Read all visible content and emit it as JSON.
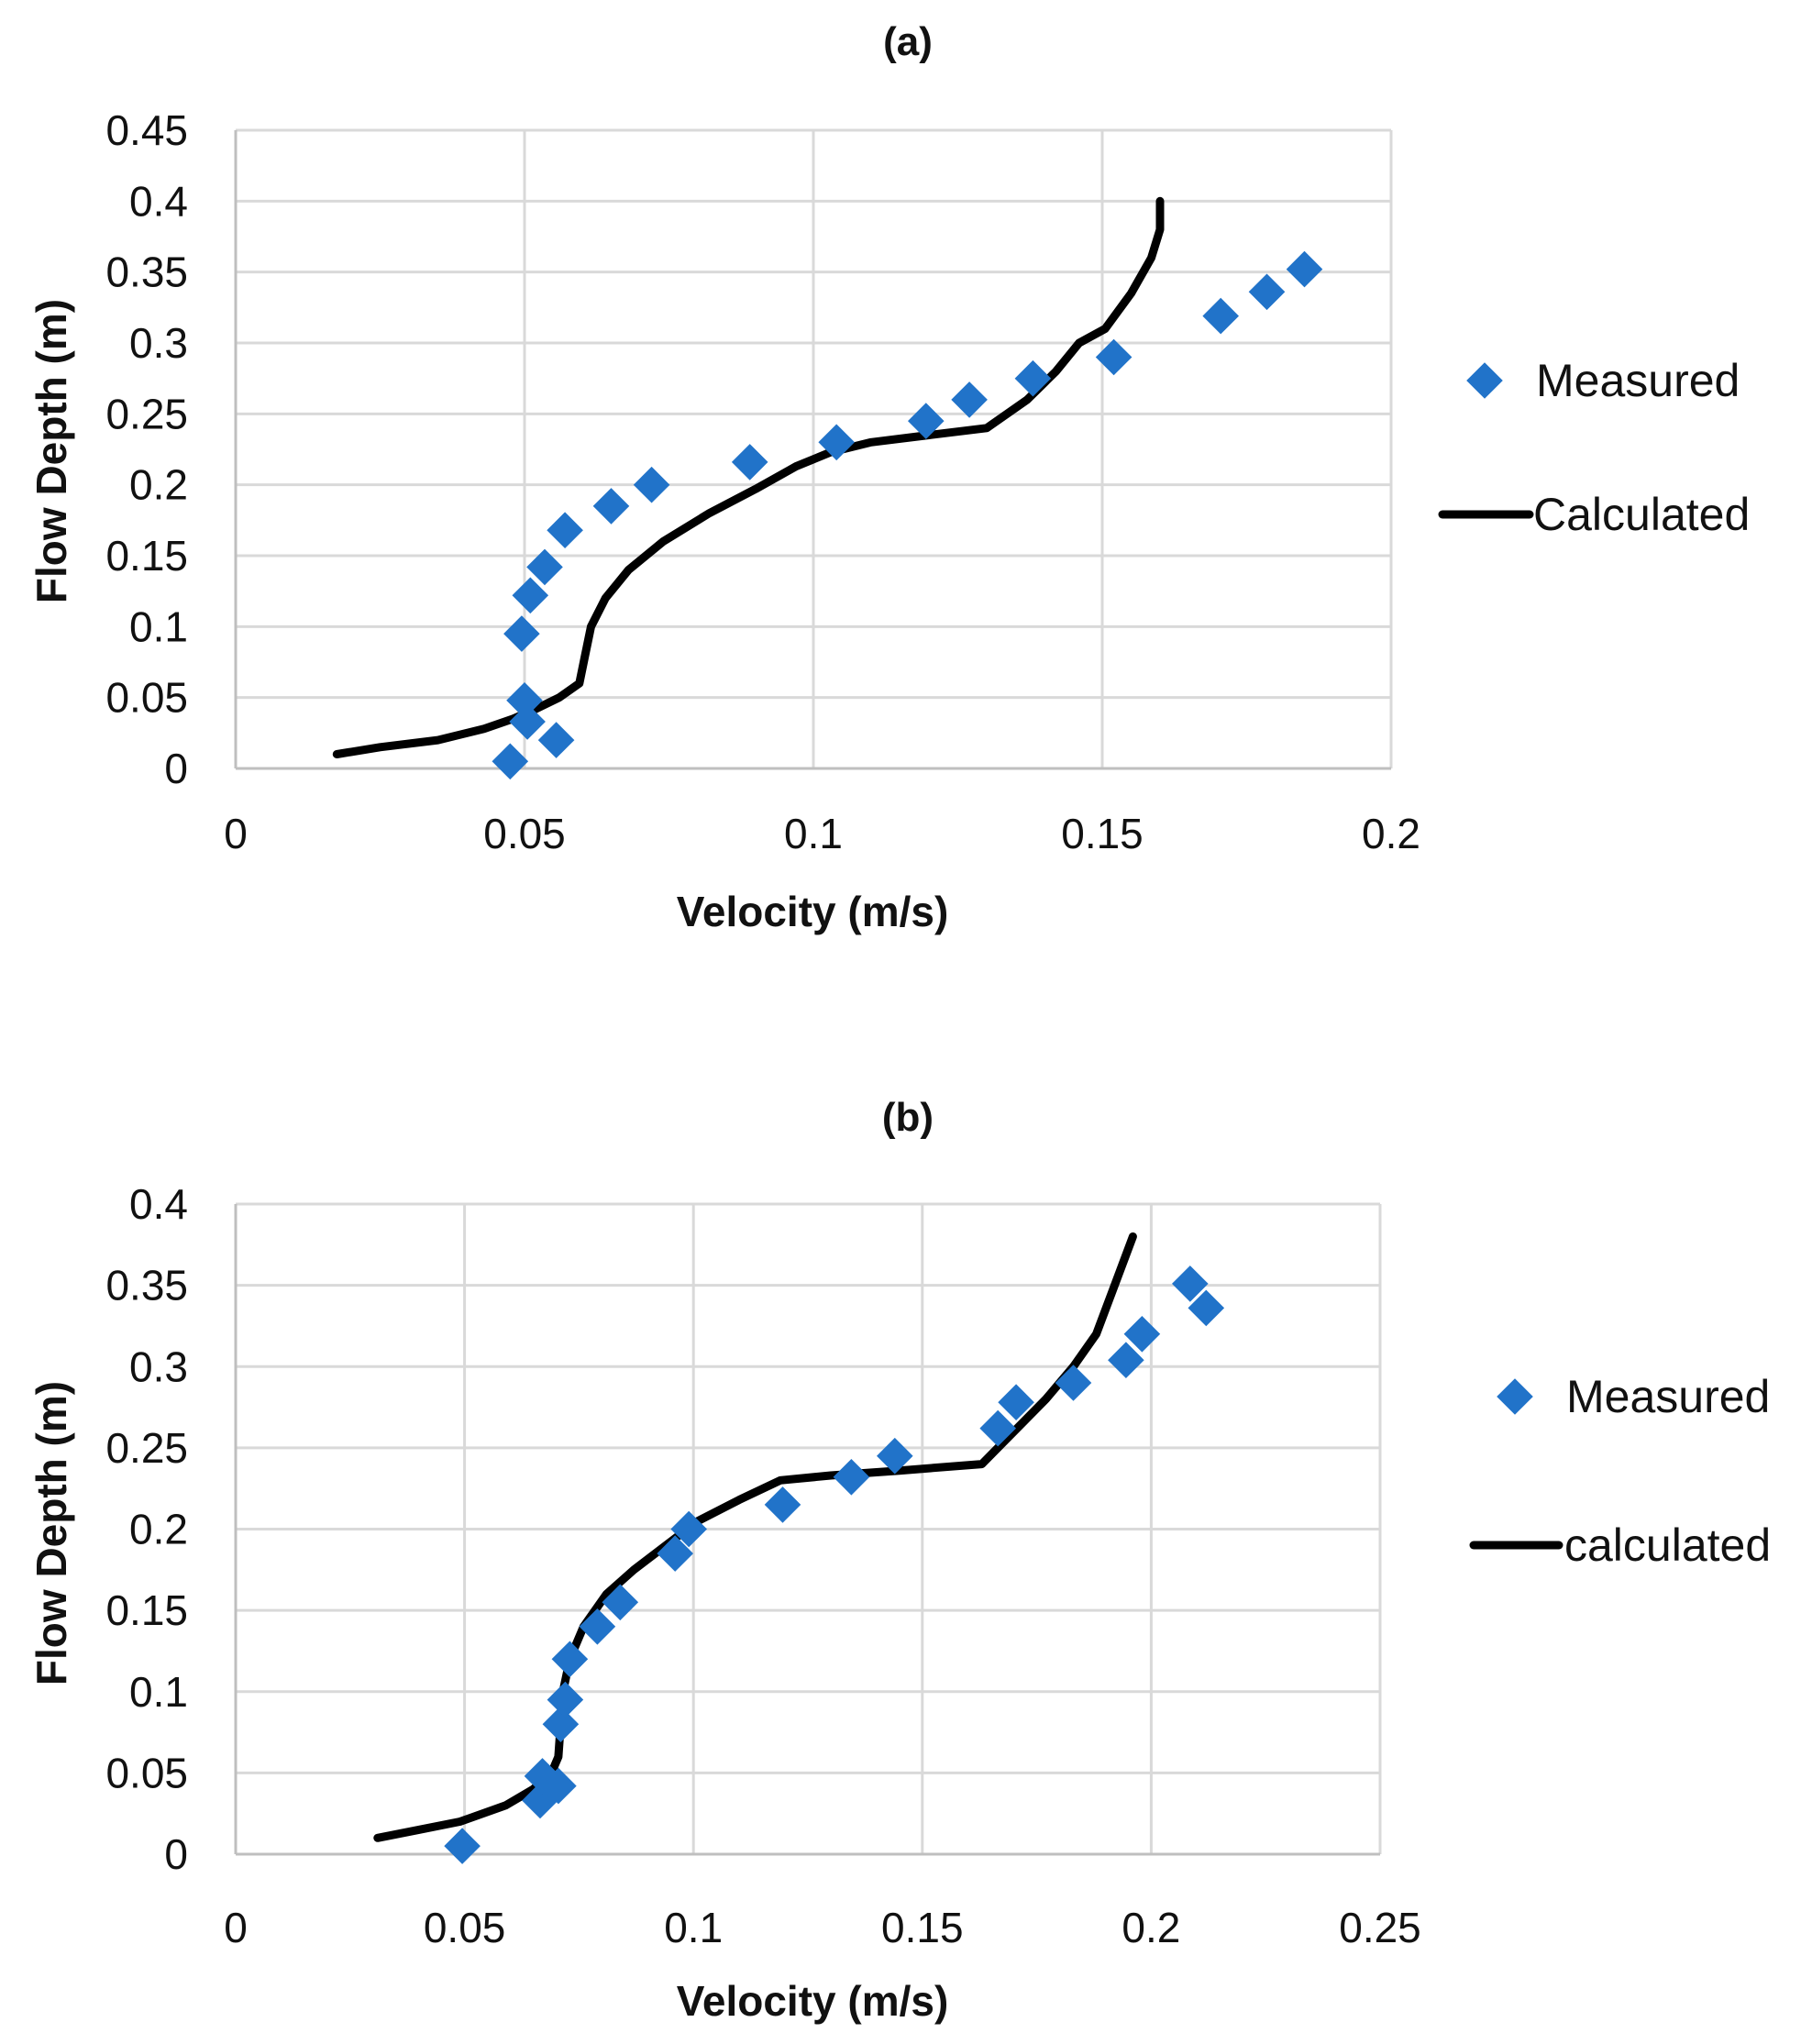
{
  "colors": {
    "measured": "#2173c9",
    "calculated": "#000000"
  },
  "chart_data": [
    {
      "type": "scatter",
      "title": "(a)",
      "xlabel": "Velocity (m/s)",
      "ylabel": "Flow Depth (m)",
      "xlim": [
        0,
        0.2
      ],
      "ylim": [
        0,
        0.45
      ],
      "xticks": [
        0,
        0.05,
        0.1,
        0.15,
        0.2
      ],
      "xtick_labels": [
        "0",
        "0.05",
        "0.1",
        "0.15",
        "0.2"
      ],
      "yticks": [
        0,
        0.05,
        0.1,
        0.15,
        0.2,
        0.25,
        0.3,
        0.35,
        0.4,
        0.45
      ],
      "ytick_labels": [
        "0",
        "0.05",
        "0.1",
        "0.15",
        "0.2",
        "0.25",
        "0.3",
        "0.35",
        "0.4",
        "0.45"
      ],
      "legend_position": "right",
      "series": [
        {
          "name": "Measured",
          "kind": "marker",
          "x": [
            0.0475,
            0.0505,
            0.0555,
            0.05,
            0.0495,
            0.051,
            0.0535,
            0.057,
            0.065,
            0.072,
            0.089,
            0.104,
            0.1195,
            0.127,
            0.138,
            0.152,
            0.1705,
            0.1785,
            0.185
          ],
          "y": [
            0.005,
            0.033,
            0.02,
            0.048,
            0.095,
            0.122,
            0.142,
            0.168,
            0.185,
            0.2,
            0.216,
            0.23,
            0.245,
            0.26,
            0.275,
            0.29,
            0.319,
            0.336,
            0.352
          ]
        },
        {
          "name": "Calculated",
          "kind": "line",
          "x": [
            0.0175,
            0.025,
            0.035,
            0.043,
            0.048,
            0.052,
            0.056,
            0.0595,
            0.0605,
            0.0615,
            0.064,
            0.068,
            0.074,
            0.082,
            0.09,
            0.097,
            0.103,
            0.11,
            0.12,
            0.13,
            0.137,
            0.142,
            0.146,
            0.1505,
            0.155,
            0.1585,
            0.16,
            0.16
          ],
          "y": [
            0.01,
            0.015,
            0.02,
            0.028,
            0.035,
            0.042,
            0.05,
            0.06,
            0.08,
            0.1,
            0.12,
            0.14,
            0.16,
            0.18,
            0.197,
            0.213,
            0.223,
            0.23,
            0.235,
            0.24,
            0.26,
            0.28,
            0.3,
            0.31,
            0.335,
            0.36,
            0.38,
            0.4
          ]
        }
      ]
    },
    {
      "type": "scatter",
      "title": "(b)",
      "xlabel": "Velocity (m/s)",
      "ylabel": "Flow Depth (m)",
      "xlim": [
        0,
        0.25
      ],
      "ylim": [
        0,
        0.4
      ],
      "xticks": [
        0,
        0.05,
        0.1,
        0.15,
        0.2,
        0.25
      ],
      "xtick_labels": [
        "0",
        "0.05",
        "0.1",
        "0.15",
        "0.2",
        "0.25"
      ],
      "yticks": [
        0,
        0.05,
        0.1,
        0.15,
        0.2,
        0.25,
        0.3,
        0.35,
        0.4
      ],
      "ytick_labels": [
        "0",
        "0.05",
        "0.1",
        "0.15",
        "0.2",
        "0.25",
        "0.3",
        "0.35",
        "0.4"
      ],
      "legend_position": "right",
      "series": [
        {
          "name": "Measured",
          "kind": "marker",
          "x": [
            0.0495,
            0.0665,
            0.067,
            0.0705,
            0.071,
            0.072,
            0.073,
            0.079,
            0.084,
            0.096,
            0.099,
            0.1195,
            0.1345,
            0.144,
            0.1665,
            0.1705,
            0.183,
            0.1945,
            0.198,
            0.2085,
            0.212
          ],
          "y": [
            0.005,
            0.033,
            0.048,
            0.042,
            0.08,
            0.095,
            0.12,
            0.14,
            0.155,
            0.185,
            0.2,
            0.215,
            0.232,
            0.245,
            0.262,
            0.278,
            0.29,
            0.304,
            0.32,
            0.351,
            0.336
          ]
        },
        {
          "name": "calculated",
          "kind": "line",
          "x": [
            0.031,
            0.04,
            0.049,
            0.059,
            0.065,
            0.069,
            0.0705,
            0.071,
            0.0715,
            0.073,
            0.076,
            0.081,
            0.087,
            0.094,
            0.101,
            0.11,
            0.119,
            0.13,
            0.145,
            0.163,
            0.17,
            0.177,
            0.183,
            0.188,
            0.192,
            0.196
          ],
          "y": [
            0.01,
            0.015,
            0.02,
            0.03,
            0.04,
            0.05,
            0.06,
            0.08,
            0.1,
            0.12,
            0.14,
            0.16,
            0.175,
            0.19,
            0.205,
            0.218,
            0.23,
            0.233,
            0.236,
            0.24,
            0.26,
            0.28,
            0.3,
            0.32,
            0.35,
            0.38
          ]
        }
      ]
    }
  ]
}
